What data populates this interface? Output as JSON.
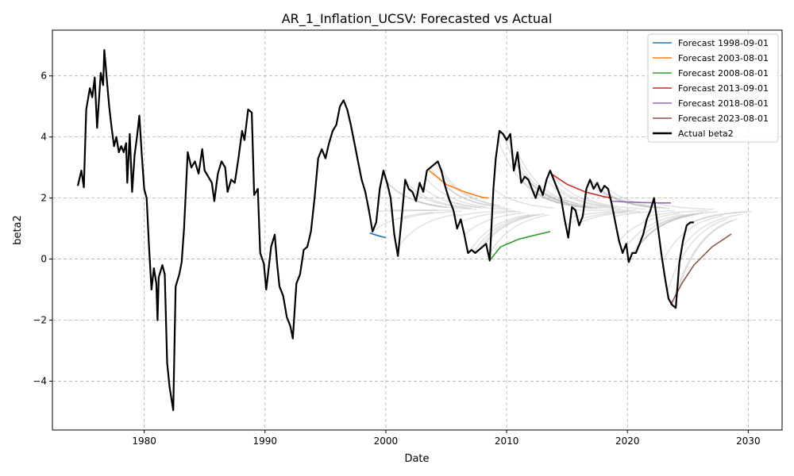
{
  "chart_data": {
    "type": "line",
    "title": "AR_1_Inflation_UCSV: Forecasted vs Actual",
    "xlabel": "Date",
    "ylabel": "beta2",
    "xlim": [
      1972.4,
      2032.8
    ],
    "ylim": [
      -5.6,
      7.5
    ],
    "x_ticks": [
      1980,
      1990,
      2000,
      2010,
      2020,
      2030
    ],
    "y_ticks": [
      -4,
      -2,
      0,
      2,
      4,
      6
    ],
    "y_tick_labels": [
      "−4",
      "−2",
      "0",
      "2",
      "4",
      "6"
    ],
    "grid": true,
    "legend_position": "top-right",
    "actual": {
      "name": "Actual beta2",
      "color": "#000000",
      "points": [
        [
          1974.5,
          2.4
        ],
        [
          1974.8,
          2.9
        ],
        [
          1975.0,
          2.35
        ],
        [
          1975.2,
          4.9
        ],
        [
          1975.5,
          5.6
        ],
        [
          1975.7,
          5.3
        ],
        [
          1975.9,
          5.95
        ],
        [
          1976.1,
          4.3
        ],
        [
          1976.4,
          6.1
        ],
        [
          1976.6,
          5.7
        ],
        [
          1976.7,
          6.85
        ],
        [
          1976.9,
          5.9
        ],
        [
          1977.1,
          5.0
        ],
        [
          1977.3,
          4.3
        ],
        [
          1977.5,
          3.7
        ],
        [
          1977.7,
          4.0
        ],
        [
          1977.9,
          3.5
        ],
        [
          1978.1,
          3.7
        ],
        [
          1978.3,
          3.5
        ],
        [
          1978.5,
          3.8
        ],
        [
          1978.6,
          2.5
        ],
        [
          1978.8,
          4.1
        ],
        [
          1979.0,
          2.2
        ],
        [
          1979.2,
          3.4
        ],
        [
          1979.4,
          4.0
        ],
        [
          1979.6,
          4.7
        ],
        [
          1979.8,
          3.4
        ],
        [
          1980.0,
          2.3
        ],
        [
          1980.2,
          2.0
        ],
        [
          1980.4,
          0.4
        ],
        [
          1980.6,
          -1.0
        ],
        [
          1980.8,
          -0.3
        ],
        [
          1981.0,
          -0.8
        ],
        [
          1981.1,
          -2.0
        ],
        [
          1981.2,
          -0.6
        ],
        [
          1981.5,
          -0.2
        ],
        [
          1981.7,
          -0.5
        ],
        [
          1981.9,
          -3.4
        ],
        [
          1982.1,
          -4.2
        ],
        [
          1982.4,
          -4.95
        ],
        [
          1982.6,
          -0.9
        ],
        [
          1982.9,
          -0.5
        ],
        [
          1983.1,
          -0.1
        ],
        [
          1983.3,
          1.0
        ],
        [
          1983.6,
          3.5
        ],
        [
          1983.9,
          3.0
        ],
        [
          1984.2,
          3.2
        ],
        [
          1984.5,
          2.8
        ],
        [
          1984.8,
          3.6
        ],
        [
          1985.0,
          2.9
        ],
        [
          1985.3,
          2.7
        ],
        [
          1985.6,
          2.5
        ],
        [
          1985.8,
          1.9
        ],
        [
          1986.1,
          2.8
        ],
        [
          1986.4,
          3.2
        ],
        [
          1986.7,
          3.0
        ],
        [
          1986.9,
          2.2
        ],
        [
          1987.2,
          2.6
        ],
        [
          1987.5,
          2.5
        ],
        [
          1987.8,
          3.3
        ],
        [
          1988.1,
          4.2
        ],
        [
          1988.3,
          3.9
        ],
        [
          1988.6,
          4.9
        ],
        [
          1988.9,
          4.8
        ],
        [
          1989.1,
          2.1
        ],
        [
          1989.4,
          2.3
        ],
        [
          1989.6,
          0.2
        ],
        [
          1989.9,
          -0.15
        ],
        [
          1990.1,
          -1.0
        ],
        [
          1990.3,
          -0.3
        ],
        [
          1990.5,
          0.4
        ],
        [
          1990.8,
          0.8
        ],
        [
          1991.0,
          -0.15
        ],
        [
          1991.2,
          -0.9
        ],
        [
          1991.5,
          -1.2
        ],
        [
          1991.8,
          -1.9
        ],
        [
          1992.1,
          -2.2
        ],
        [
          1992.3,
          -2.6
        ],
        [
          1992.6,
          -0.8
        ],
        [
          1992.9,
          -0.5
        ],
        [
          1993.2,
          0.3
        ],
        [
          1993.5,
          0.4
        ],
        [
          1993.8,
          0.9
        ],
        [
          1994.1,
          2.0
        ],
        [
          1994.4,
          3.3
        ],
        [
          1994.7,
          3.6
        ],
        [
          1995.0,
          3.3
        ],
        [
          1995.3,
          3.8
        ],
        [
          1995.6,
          4.2
        ],
        [
          1995.9,
          4.4
        ],
        [
          1996.2,
          5.0
        ],
        [
          1996.5,
          5.2
        ],
        [
          1996.8,
          4.9
        ],
        [
          1997.1,
          4.4
        ],
        [
          1997.4,
          3.8
        ],
        [
          1997.7,
          3.2
        ],
        [
          1998.0,
          2.6
        ],
        [
          1998.3,
          2.2
        ],
        [
          1998.6,
          1.6
        ],
        [
          1998.9,
          0.9
        ],
        [
          1999.2,
          1.2
        ],
        [
          1999.5,
          2.3
        ],
        [
          1999.8,
          2.9
        ],
        [
          2000.1,
          2.5
        ],
        [
          2000.4,
          2.0
        ],
        [
          2000.7,
          0.8
        ],
        [
          2001.0,
          0.1
        ],
        [
          2001.3,
          1.3
        ],
        [
          2001.6,
          2.6
        ],
        [
          2001.9,
          2.3
        ],
        [
          2002.2,
          2.2
        ],
        [
          2002.5,
          1.9
        ],
        [
          2002.8,
          2.5
        ],
        [
          2003.1,
          2.2
        ],
        [
          2003.4,
          2.9
        ],
        [
          2003.7,
          3.0
        ],
        [
          2004.0,
          3.1
        ],
        [
          2004.3,
          3.2
        ],
        [
          2004.6,
          2.9
        ],
        [
          2004.9,
          2.4
        ],
        [
          2005.2,
          2.0
        ],
        [
          2005.6,
          1.6
        ],
        [
          2005.9,
          1.0
        ],
        [
          2006.2,
          1.3
        ],
        [
          2006.5,
          0.8
        ],
        [
          2006.8,
          0.2
        ],
        [
          2007.1,
          0.3
        ],
        [
          2007.4,
          0.2
        ],
        [
          2007.7,
          0.3
        ],
        [
          2008.0,
          0.4
        ],
        [
          2008.3,
          0.5
        ],
        [
          2008.6,
          -0.05
        ],
        [
          2008.9,
          2.3
        ],
        [
          2009.1,
          3.3
        ],
        [
          2009.4,
          4.2
        ],
        [
          2009.7,
          4.1
        ],
        [
          2010.0,
          3.9
        ],
        [
          2010.3,
          4.1
        ],
        [
          2010.6,
          2.9
        ],
        [
          2010.9,
          3.5
        ],
        [
          2011.2,
          2.5
        ],
        [
          2011.5,
          2.7
        ],
        [
          2011.8,
          2.6
        ],
        [
          2012.1,
          2.3
        ],
        [
          2012.4,
          2.0
        ],
        [
          2012.7,
          2.4
        ],
        [
          2013.0,
          2.1
        ],
        [
          2013.3,
          2.6
        ],
        [
          2013.6,
          2.9
        ],
        [
          2013.9,
          2.6
        ],
        [
          2014.2,
          2.3
        ],
        [
          2014.5,
          2.0
        ],
        [
          2014.8,
          1.3
        ],
        [
          2015.1,
          0.7
        ],
        [
          2015.4,
          1.7
        ],
        [
          2015.7,
          1.6
        ],
        [
          2016.0,
          1.1
        ],
        [
          2016.3,
          1.4
        ],
        [
          2016.6,
          2.3
        ],
        [
          2016.9,
          2.6
        ],
        [
          2017.2,
          2.3
        ],
        [
          2017.5,
          2.5
        ],
        [
          2017.8,
          2.2
        ],
        [
          2018.1,
          2.4
        ],
        [
          2018.4,
          2.3
        ],
        [
          2018.7,
          1.8
        ],
        [
          2019.0,
          1.2
        ],
        [
          2019.3,
          0.6
        ],
        [
          2019.6,
          0.2
        ],
        [
          2019.9,
          0.5
        ],
        [
          2020.1,
          -0.1
        ],
        [
          2020.4,
          0.2
        ],
        [
          2020.7,
          0.2
        ],
        [
          2021.0,
          0.5
        ],
        [
          2021.3,
          0.8
        ],
        [
          2021.6,
          1.3
        ],
        [
          2021.9,
          1.6
        ],
        [
          2022.2,
          2.0
        ],
        [
          2022.5,
          1.1
        ],
        [
          2022.8,
          0.2
        ],
        [
          2023.1,
          -0.6
        ],
        [
          2023.4,
          -1.3
        ],
        [
          2023.7,
          -1.5
        ],
        [
          2024.0,
          -1.6
        ],
        [
          2024.3,
          -0.1
        ],
        [
          2024.6,
          0.6
        ],
        [
          2024.9,
          1.1
        ],
        [
          2025.2,
          1.2
        ],
        [
          2025.5,
          1.2
        ]
      ]
    },
    "series": [
      {
        "name": "Forecast 1998-09-01",
        "color": "#1f77b4",
        "x": [
          1998.67,
          1999.5,
          2000.0
        ],
        "y": [
          0.85,
          0.75,
          0.7
        ]
      },
      {
        "name": "Forecast 2003-08-01",
        "color": "#ff7f0e",
        "x": [
          2003.58,
          2005.0,
          2006.5,
          2008.0,
          2008.5
        ],
        "y": [
          2.9,
          2.45,
          2.2,
          2.02,
          2.0
        ]
      },
      {
        "name": "Forecast 2008-08-01",
        "color": "#2ca02c",
        "x": [
          2008.58,
          2009.5,
          2011.0,
          2012.5,
          2013.6
        ],
        "y": [
          -0.05,
          0.4,
          0.65,
          0.8,
          0.9
        ]
      },
      {
        "name": "Forecast 2013-09-01",
        "color": "#d62728",
        "x": [
          2013.67,
          2015.0,
          2016.5,
          2018.0,
          2018.7
        ],
        "y": [
          2.8,
          2.45,
          2.2,
          2.05,
          2.0
        ]
      },
      {
        "name": "Forecast 2018-08-01",
        "color": "#9467bd",
        "x": [
          2018.58,
          2020.0,
          2021.5,
          2023.0,
          2023.6
        ],
        "y": [
          1.9,
          1.87,
          1.85,
          1.84,
          1.84
        ]
      },
      {
        "name": "Forecast 2023-08-01",
        "color": "#8c564b",
        "x": [
          2023.58,
          2024.5,
          2025.5,
          2027.0,
          2028.6
        ],
        "y": [
          -1.5,
          -0.8,
          -0.2,
          0.4,
          0.82
        ]
      }
    ],
    "background_forecasts": {
      "color": "#b0b0b0",
      "start_years": [
        1998.9,
        1999.3,
        1999.7,
        2000.1,
        2000.5,
        2000.9,
        2001.3,
        2001.7,
        2002.1,
        2002.5,
        2002.9,
        2003.3,
        2003.7,
        2004.1,
        2004.5,
        2004.9,
        2005.3,
        2005.7,
        2006.1,
        2006.5,
        2006.9,
        2007.3,
        2007.7,
        2008.1,
        2008.5,
        2008.9,
        2009.3,
        2009.7,
        2010.1,
        2010.5,
        2010.9,
        2011.3,
        2011.7,
        2012.1,
        2012.5,
        2012.9,
        2013.3,
        2013.7,
        2014.1,
        2014.5,
        2014.9,
        2015.3,
        2015.7,
        2016.1,
        2016.5,
        2016.9,
        2017.3,
        2017.7,
        2018.1,
        2018.5,
        2018.9,
        2019.3,
        2019.7,
        2020.1,
        2020.5,
        2020.9,
        2021.3,
        2021.7,
        2022.1,
        2022.5,
        2022.9,
        2023.3,
        2023.7,
        2024.1,
        2024.5,
        2024.9,
        2025.3
      ],
      "horizon_years": 5,
      "long_run_mean": 1.6
    }
  },
  "legend": {
    "items": [
      {
        "label": "Forecast 1998-09-01",
        "color": "#1f77b4"
      },
      {
        "label": "Forecast 2003-08-01",
        "color": "#ff7f0e"
      },
      {
        "label": "Forecast 2008-08-01",
        "color": "#2ca02c"
      },
      {
        "label": "Forecast 2013-09-01",
        "color": "#d62728"
      },
      {
        "label": "Forecast 2018-08-01",
        "color": "#9467bd"
      },
      {
        "label": "Forecast 2023-08-01",
        "color": "#8c564b"
      },
      {
        "label": "Actual beta2",
        "color": "#000000"
      }
    ]
  }
}
